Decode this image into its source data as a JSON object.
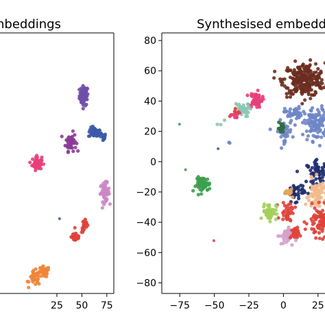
{
  "chart_data": [
    {
      "type": "scatter",
      "title": "Real embeddings",
      "visible_title_fragment": "nbeddings",
      "x_ticks": [
        "25",
        "50",
        "75"
      ],
      "xlim": [
        -80,
        82
      ],
      "ylim": [
        -85,
        85
      ],
      "grid": false,
      "clusters": [
        {
          "name": "",
          "color": "#6f4fa8",
          "center": [
            52,
            44
          ],
          "spread": [
            2.2,
            3.2
          ],
          "n": 70
        },
        {
          "name": "",
          "color": "#3c5aa6",
          "center": [
            63,
            20
          ],
          "spread": [
            3.2,
            1.6
          ],
          "n": 50
        },
        {
          "name": "",
          "color": "#3c5aa6",
          "center": [
            71,
            17
          ],
          "spread": [
            1.6,
            1.2
          ],
          "n": 20
        },
        {
          "name": "",
          "color": "#8b3c96",
          "center": [
            39,
            14
          ],
          "spread": [
            2.6,
            3.0
          ],
          "n": 60
        },
        {
          "name": "",
          "color": "#e83e7a",
          "center": [
            5,
            0
          ],
          "spread": [
            2.4,
            2.2
          ],
          "n": 55
        },
        {
          "name": "",
          "color": "#cc87c4",
          "center": [
            73,
            -19
          ],
          "spread": [
            2.3,
            3.0
          ],
          "n": 60
        },
        {
          "name": "",
          "color": "#e0433a",
          "center": [
            53,
            -41
          ],
          "spread": [
            1.6,
            2.2
          ],
          "n": 25
        },
        {
          "name": "",
          "color": "#e0433a",
          "center": [
            44,
            -48
          ],
          "spread": [
            2.2,
            1.8
          ],
          "n": 35
        },
        {
          "name": "",
          "color": "#ee8538",
          "center": [
            12,
            -71
          ],
          "spread": [
            2.8,
            1.8
          ],
          "n": 35
        },
        {
          "name": "",
          "color": "#ee8538",
          "center": [
            3,
            -75
          ],
          "spread": [
            2.8,
            2.4
          ],
          "n": 35
        },
        {
          "name": "",
          "color": "#3c5aa6",
          "center": [
            28,
            -36
          ],
          "spread": [
            0.3,
            0.3
          ],
          "n": 1
        }
      ]
    },
    {
      "type": "scatter",
      "title": "Synthesised embeddings",
      "visible_title_fragment": "Synthesised embedd",
      "x_ticks": [
        "−75",
        "−50",
        "−25",
        "0",
        "25"
      ],
      "y_ticks": [
        "80",
        "60",
        "40",
        "20",
        "0",
        "−20",
        "−40",
        "−60",
        "−80"
      ],
      "xlim": [
        -88,
        38
      ],
      "ylim": [
        -87,
        85
      ],
      "grid": false,
      "clusters": [
        {
          "name": "",
          "color": "#6b2e1f",
          "center": [
            15,
            54
          ],
          "spread": [
            7.5,
            5.5
          ],
          "n": 260
        },
        {
          "name": "",
          "color": "#e83e7a",
          "center": [
            -20,
            41
          ],
          "spread": [
            2.3,
            2.6
          ],
          "n": 55
        },
        {
          "name": "",
          "color": "#8cc6b4",
          "center": [
            -30,
            34
          ],
          "spread": [
            2.6,
            2.2
          ],
          "n": 35
        },
        {
          "name": "",
          "color": "#e83e7a",
          "center": [
            -35,
            31
          ],
          "spread": [
            1.5,
            1.2
          ],
          "n": 12
        },
        {
          "name": "",
          "color": "#6f86c7",
          "center": [
            7,
            32
          ],
          "spread": [
            3.0,
            2.2
          ],
          "n": 40
        },
        {
          "name": "",
          "color": "#6f86c7",
          "center": [
            24,
            25
          ],
          "spread": [
            4.5,
            5.5
          ],
          "n": 110
        },
        {
          "name": "",
          "color": "#6f86c7",
          "center": [
            0,
            20
          ],
          "spread": [
            3.2,
            3.5
          ],
          "n": 45
        },
        {
          "name": "",
          "color": "#2f6b3a",
          "center": [
            -1,
            22
          ],
          "spread": [
            1.5,
            1.8
          ],
          "n": 12
        },
        {
          "name": "",
          "color": "#3c9e4c",
          "center": [
            -58,
            -15
          ],
          "spread": [
            2.6,
            2.4
          ],
          "n": 60
        },
        {
          "name": "",
          "color": "#1e2c6e",
          "center": [
            25,
            -7
          ],
          "spread": [
            4.0,
            3.5
          ],
          "n": 60
        },
        {
          "name": "",
          "color": "#1e2c6e",
          "center": [
            9,
            -20
          ],
          "spread": [
            3.2,
            3.0
          ],
          "n": 40
        },
        {
          "name": "",
          "color": "#f2b98a",
          "center": [
            26,
            -22
          ],
          "spread": [
            5.0,
            5.0
          ],
          "n": 90
        },
        {
          "name": "",
          "color": "#e6a55a",
          "center": [
            5,
            -20
          ],
          "spread": [
            1.5,
            1.4
          ],
          "n": 15
        },
        {
          "name": "",
          "color": "#e0433a",
          "center": [
            28,
            -40
          ],
          "spread": [
            5.0,
            5.0
          ],
          "n": 110
        },
        {
          "name": "",
          "color": "#e0433a",
          "center": [
            3,
            -33
          ],
          "spread": [
            2.5,
            3.5
          ],
          "n": 35
        },
        {
          "name": "",
          "color": "#a3cf5a",
          "center": [
            -10,
            -33
          ],
          "spread": [
            2.4,
            2.8
          ],
          "n": 55
        },
        {
          "name": "",
          "color": "#d4a0cc",
          "center": [
            2,
            -49
          ],
          "spread": [
            2.5,
            2.8
          ],
          "n": 45
        },
        {
          "name": "",
          "color": "#e0433a",
          "center": [
            8,
            -48
          ],
          "spread": [
            1.6,
            2.2
          ],
          "n": 25
        },
        {
          "name": "",
          "color": "#3c9e4c",
          "center": [
            -75,
            25
          ],
          "spread": [
            0.3,
            0.3
          ],
          "n": 1
        },
        {
          "name": "",
          "color": "#3c9e4c",
          "center": [
            -71,
            -5
          ],
          "spread": [
            0.3,
            0.3
          ],
          "n": 1
        },
        {
          "name": "",
          "color": "#6f86c7",
          "center": [
            -40,
            12
          ],
          "spread": [
            0.6,
            0.6
          ],
          "n": 2
        },
        {
          "name": "",
          "color": "#3c5aa6",
          "center": [
            -47,
            9
          ],
          "spread": [
            0.4,
            0.4
          ],
          "n": 1
        },
        {
          "name": "",
          "color": "#e0433a",
          "center": [
            -50,
            -52
          ],
          "spread": [
            0.3,
            0.3
          ],
          "n": 1
        },
        {
          "name": "",
          "color": "#8cc6b4",
          "center": [
            -45,
            25
          ],
          "spread": [
            1.2,
            1.2
          ],
          "n": 3
        },
        {
          "name": "",
          "color": "#e0433a",
          "center": [
            -35,
            31
          ],
          "spread": [
            2.0,
            2.0
          ],
          "n": 4
        }
      ]
    }
  ]
}
